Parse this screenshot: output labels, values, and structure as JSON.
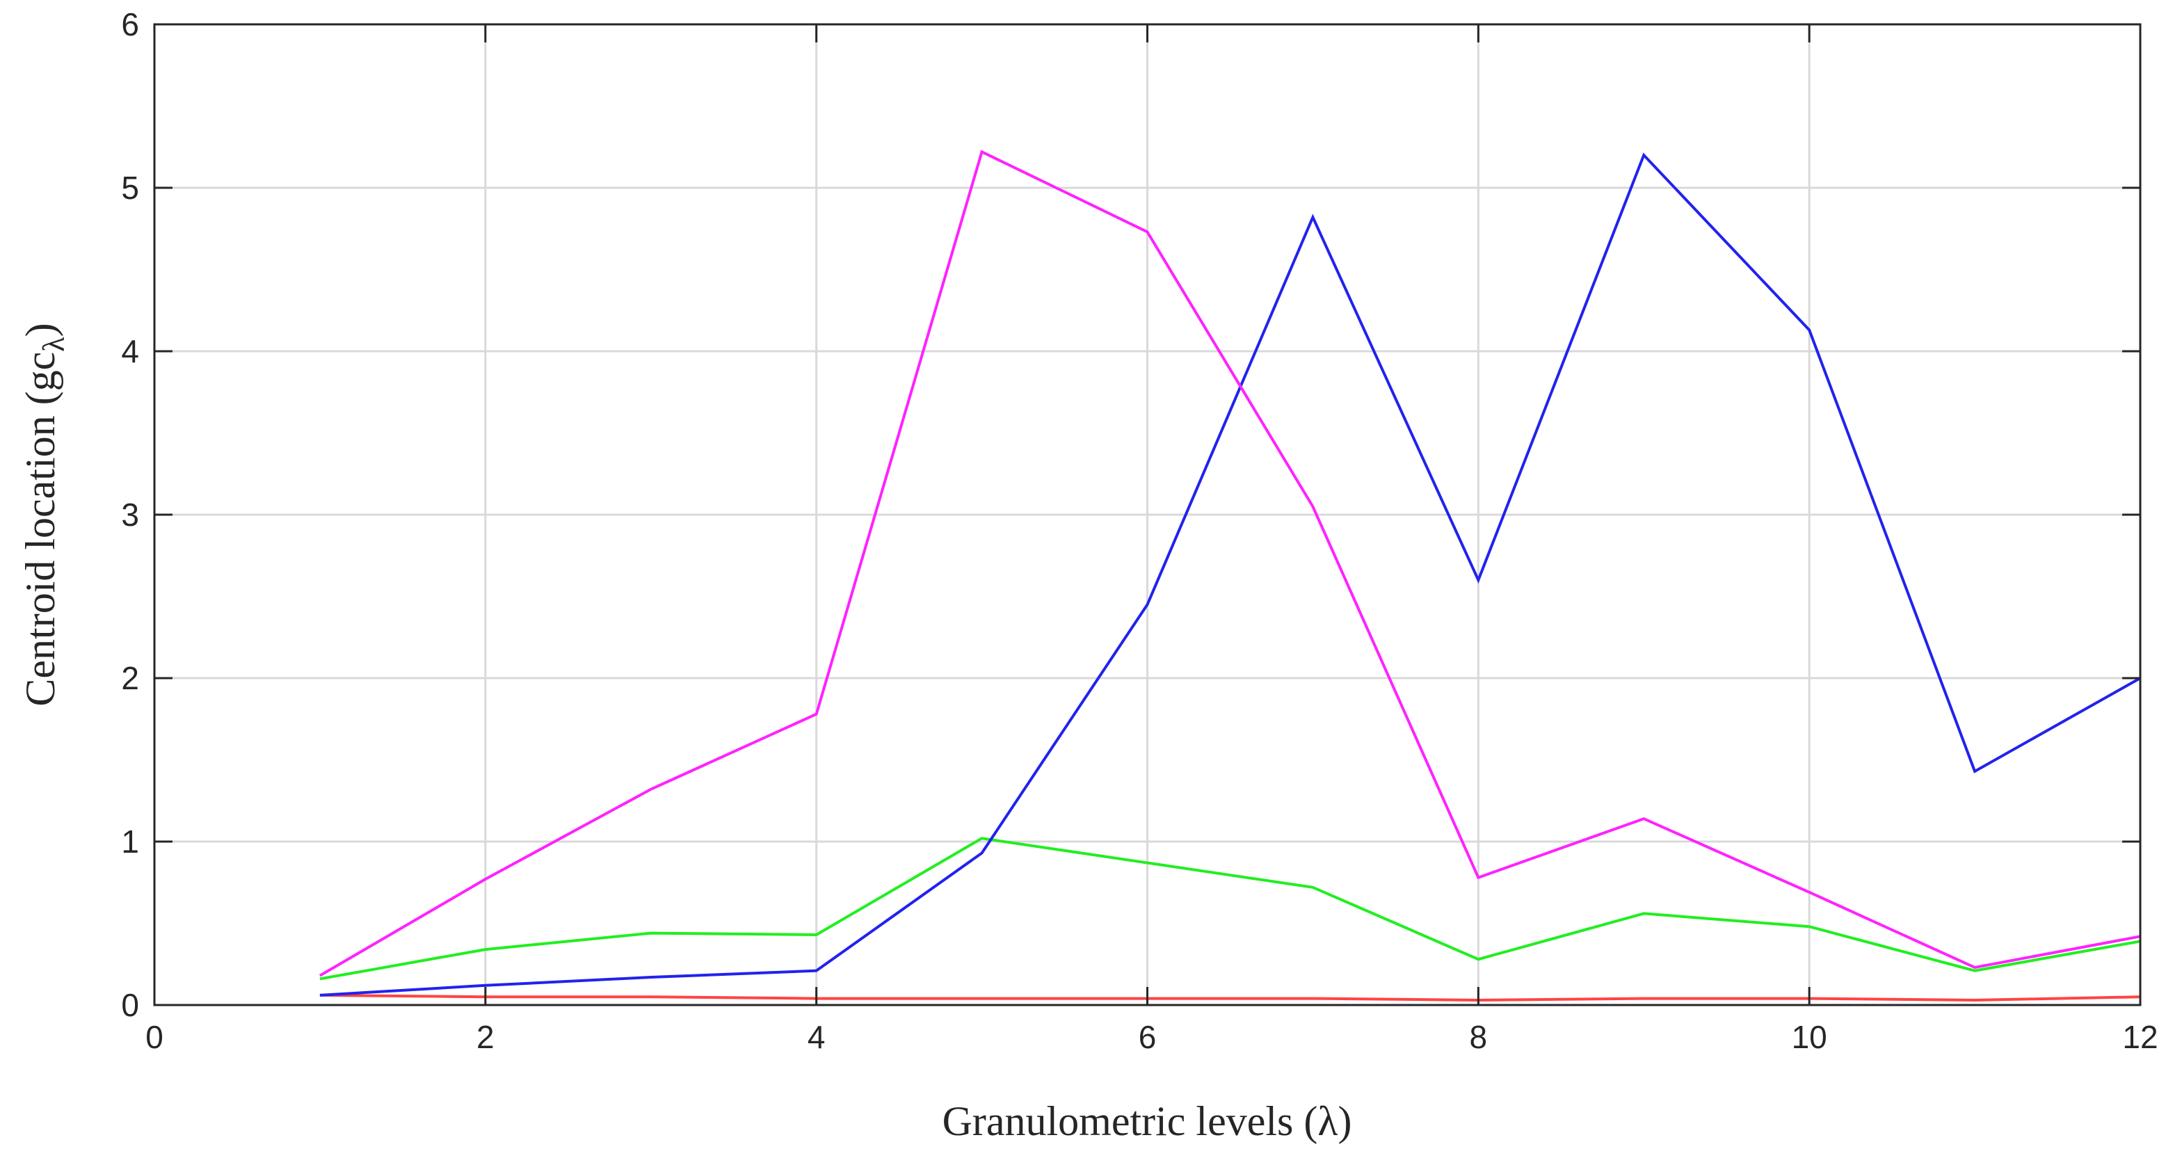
{
  "chart_data": {
    "type": "line",
    "title": "",
    "xlabel": "Granulometric levels (λ)",
    "ylabel": "Centroid location (gc",
    "ylabel_subscript": "λ",
    "ylabel_suffix": ")",
    "xlim": [
      0,
      12
    ],
    "ylim": [
      0,
      6
    ],
    "xticks": [
      0,
      2,
      4,
      6,
      8,
      10,
      12
    ],
    "yticks": [
      0,
      1,
      2,
      3,
      4,
      5,
      6
    ],
    "grid": true,
    "legend": "none",
    "x": [
      1,
      2,
      3,
      4,
      5,
      6,
      7,
      8,
      9,
      10,
      11,
      12
    ],
    "series": [
      {
        "color": "#ff4444",
        "values": [
          0.06,
          0.05,
          0.05,
          0.04,
          0.04,
          0.04,
          0.04,
          0.03,
          0.04,
          0.04,
          0.03,
          0.05
        ]
      },
      {
        "color": "#22ee22",
        "values": [
          0.16,
          0.34,
          0.44,
          0.43,
          1.02,
          0.87,
          0.72,
          0.28,
          0.56,
          0.48,
          0.21,
          0.39
        ]
      },
      {
        "color": "#2222ee",
        "values": [
          0.06,
          0.12,
          0.17,
          0.21,
          0.93,
          2.45,
          4.82,
          2.6,
          5.2,
          4.13,
          1.43,
          2.0
        ]
      },
      {
        "color": "#ff22ff",
        "values": [
          0.18,
          0.77,
          1.32,
          1.78,
          5.22,
          4.73,
          3.05,
          0.78,
          1.14,
          0.69,
          0.23,
          0.42
        ]
      }
    ]
  }
}
